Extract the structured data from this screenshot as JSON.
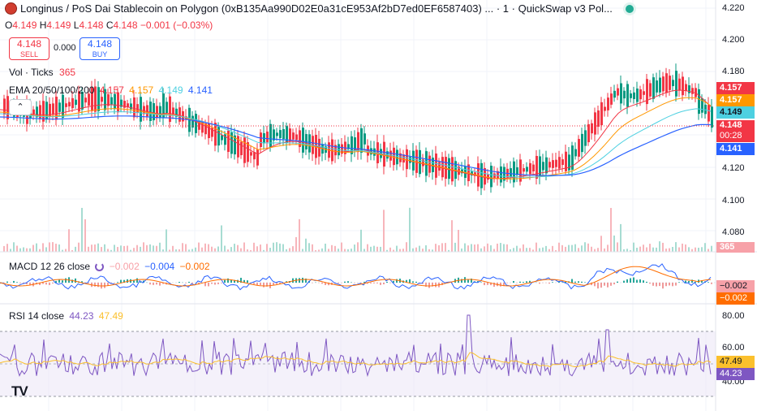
{
  "header": {
    "title": "Longinus / PoS Dai Stablecoin on Polygon (0xB135Aa990D02E0a31cE953Af2bD7ed0EF6587403) ... · 1 · QuickSwap v3 Pol...",
    "ohlc": [
      {
        "k": "O",
        "v": "4.149"
      },
      {
        "k": "H",
        "v": "4.149"
      },
      {
        "k": "L",
        "v": "4.148"
      },
      {
        "k": "C",
        "v": "4.148"
      },
      {
        "k": "",
        "v": "−0.001 (−0.03%)"
      }
    ]
  },
  "trade": {
    "sell_price": "4.148",
    "sell_label": "SELL",
    "spread": "0.000",
    "buy_price": "4.148",
    "buy_label": "BUY"
  },
  "indicators": {
    "vol": {
      "label": "Vol · Ticks",
      "value": "365"
    },
    "ema": {
      "label": "EMA 20/50/100/200",
      "values": [
        "4.157",
        "4.157",
        "4.149",
        "4.141"
      ]
    },
    "macd": {
      "label": "MACD 12 26 close",
      "values": [
        "−0.002",
        "−0.004",
        "−0.002"
      ]
    },
    "rsi": {
      "label": "RSI 14 close",
      "values": [
        "44.23",
        "47.49"
      ]
    }
  },
  "price_axis": {
    "ticks": [
      "4.220",
      "4.200",
      "4.180",
      "4.120",
      "4.100",
      "4.080"
    ],
    "labels": [
      {
        "text": "4.157",
        "color": "#f23645"
      },
      {
        "text": "4.157",
        "color": "#ff9800"
      },
      {
        "text": "4.149",
        "color": "#4dd0e1"
      },
      {
        "text": "4.148",
        "color": "#f23645"
      },
      {
        "text": "00:28",
        "color": "#f23645"
      },
      {
        "text": "4.141",
        "color": "#2962ff"
      }
    ],
    "volume_label": "365"
  },
  "macd_axis": {
    "labels": [
      "−0.002",
      "−0.002"
    ]
  },
  "rsi_axis": {
    "ticks": [
      "80.00",
      "60.00",
      "40.00"
    ],
    "labels": [
      "47.49",
      "44.23"
    ]
  },
  "colors": {
    "up": "#089981",
    "down": "#f23645",
    "ema20": "#f23645",
    "ema50": "#ff9800",
    "ema100": "#4dd0e1",
    "ema200": "#2962ff",
    "macd": "#2962ff",
    "signal": "#ff6d00",
    "rsi": "#7e57c2",
    "rsi_ma": "#fbc02d"
  },
  "brand": "TV",
  "icons": {
    "collapse": "chevron-up-icon",
    "live": "live-dot-icon",
    "logo": "token-logo-icon",
    "macd_settings": "loading-icon"
  }
}
